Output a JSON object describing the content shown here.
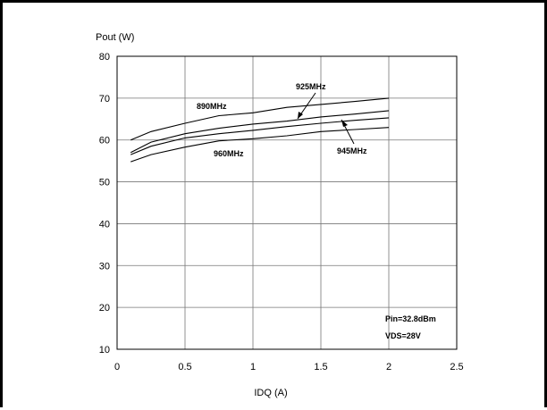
{
  "chart_data": {
    "type": "line",
    "xlabel": "IDQ (A)",
    "ylabel": "Pout (W)",
    "xlim": [
      0,
      2.5
    ],
    "ylim": [
      10,
      80
    ],
    "xticks": [
      0,
      0.5,
      1,
      1.5,
      2,
      2.5
    ],
    "yticks": [
      10,
      20,
      30,
      40,
      50,
      60,
      70,
      80
    ],
    "x_tick_labels": [
      "0",
      "0.5",
      "1",
      "1.5",
      "2",
      "2.5"
    ],
    "y_tick_labels": [
      "10",
      "20",
      "30",
      "40",
      "50",
      "60",
      "70",
      "80"
    ],
    "grid": true,
    "x": [
      0.1,
      0.25,
      0.5,
      0.75,
      1.0,
      1.25,
      1.5,
      1.75,
      2.0
    ],
    "series": [
      {
        "name": "890MHz",
        "values": [
          60.0,
          62.0,
          64.0,
          65.8,
          66.5,
          67.8,
          68.5,
          69.2,
          70.0
        ]
      },
      {
        "name": "925MHz",
        "values": [
          57.0,
          59.5,
          61.5,
          62.8,
          63.8,
          64.5,
          65.5,
          66.2,
          67.0
        ]
      },
      {
        "name": "945MHz",
        "values": [
          56.5,
          58.5,
          60.5,
          61.5,
          62.3,
          63.2,
          64.0,
          64.7,
          65.3
        ]
      },
      {
        "name": "960MHz",
        "values": [
          54.8,
          56.5,
          58.3,
          59.8,
          60.3,
          61.0,
          62.0,
          62.5,
          63.0
        ]
      }
    ],
    "annotation_lines": [
      "Pin=32.8dBm",
      "VDS=28V"
    ]
  }
}
